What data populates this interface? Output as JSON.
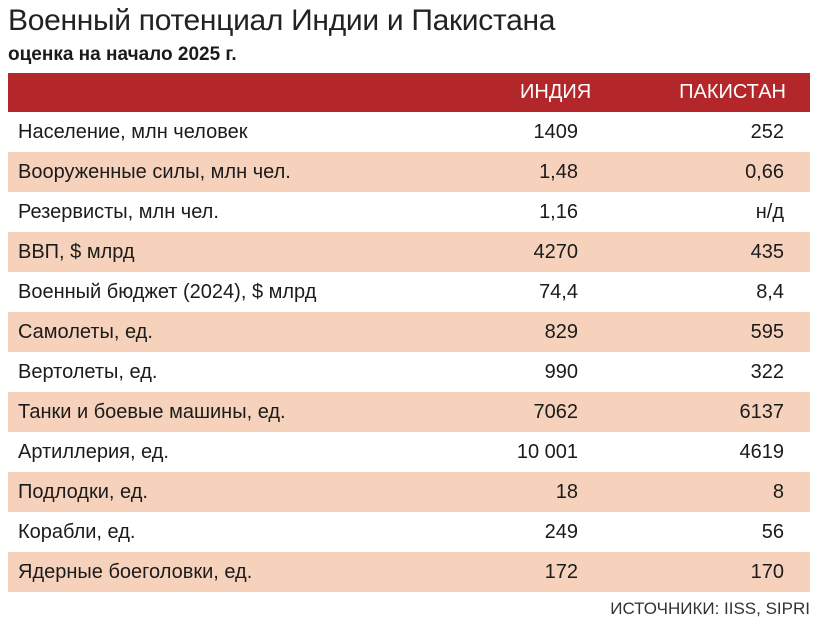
{
  "title": "Военный потенциал Индии и Пакистана",
  "subtitle": "оценка на начало 2025 г.",
  "source": "ИСТОЧНИКИ: IISS, SIPRI",
  "colors": {
    "header_bg": "#b32629",
    "header_text": "#ffffff",
    "row_shade": "#f6d2bc",
    "row_plain": "#ffffff"
  },
  "chart_data": {
    "type": "table",
    "title": "Военный потенциал Индии и Пакистана",
    "subtitle": "оценка на начало 2025 г.",
    "columns": [
      "",
      "ИНДИЯ",
      "ПАКИСТАН"
    ],
    "rows": [
      {
        "label": "Население, млн человек",
        "india": "1409",
        "pakistan": "252"
      },
      {
        "label": "Вооруженные силы, млн чел.",
        "india": "1,48",
        "pakistan": "0,66"
      },
      {
        "label": "Резервисты, млн чел.",
        "india": "1,16",
        "pakistan": "н/д"
      },
      {
        "label": "ВВП, $ млрд",
        "india": "4270",
        "pakistan": "435"
      },
      {
        "label": "Военный бюджет (2024), $ млрд",
        "india": "74,4",
        "pakistan": "8,4"
      },
      {
        "label": "Самолеты, ед.",
        "india": "829",
        "pakistan": "595"
      },
      {
        "label": "Вертолеты, ед.",
        "india": "990",
        "pakistan": "322"
      },
      {
        "label": "Танки и боевые машины, ед.",
        "india": "7062",
        "pakistan": "6137"
      },
      {
        "label": "Артиллерия, ед.",
        "india": "10 001",
        "pakistan": "4619"
      },
      {
        "label": "Подлодки, ед.",
        "india": "18",
        "pakistan": "8"
      },
      {
        "label": "Корабли, ед.",
        "india": "249",
        "pakistan": "56"
      },
      {
        "label": "Ядерные боеголовки, ед.",
        "india": "172",
        "pakistan": "170"
      }
    ]
  }
}
